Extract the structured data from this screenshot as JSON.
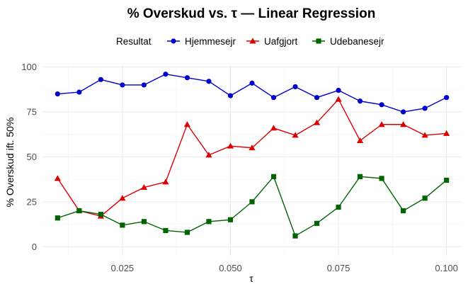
{
  "chart_data": {
    "type": "line",
    "title": "% Overskud vs. τ — Linear Regression",
    "xlabel": "τ",
    "ylabel": "% Overskud ift. 50%",
    "xlim": [
      0.0065,
      0.1035
    ],
    "ylim": [
      -5,
      101
    ],
    "xticks": [
      0.025,
      0.05,
      0.075,
      0.1
    ],
    "xtick_labels": [
      "0.025",
      "0.050",
      "0.075",
      "0.100"
    ],
    "yticks": [
      0,
      25,
      50,
      75,
      100
    ],
    "ytick_labels": [
      "0",
      "25",
      "50",
      "75",
      "100"
    ],
    "grid": true,
    "legend": {
      "title": "Resultat",
      "position": "top"
    },
    "x": [
      0.01,
      0.015,
      0.02,
      0.025,
      0.03,
      0.035,
      0.04,
      0.045,
      0.05,
      0.055,
      0.06,
      0.065,
      0.07,
      0.075,
      0.08,
      0.085,
      0.09,
      0.095,
      0.1
    ],
    "series": [
      {
        "name": "Hjemmesejr",
        "color": "#0000cc",
        "marker": "circle",
        "values": [
          85,
          86,
          93,
          90,
          90,
          96,
          94,
          92,
          84,
          91,
          83,
          89,
          83,
          87,
          81,
          79,
          75,
          77,
          83
        ]
      },
      {
        "name": "Uafgjort",
        "color": "#dd0000",
        "marker": "triangle",
        "values": [
          38,
          20,
          17,
          27,
          33,
          36,
          68,
          51,
          56,
          55,
          66,
          62,
          69,
          82,
          59,
          68,
          68,
          62,
          63
        ]
      },
      {
        "name": "Udebanesejr",
        "color": "#006400",
        "marker": "square",
        "values": [
          16,
          20,
          18,
          12,
          14,
          9,
          8,
          14,
          15,
          25,
          39,
          6,
          13,
          22,
          39,
          38,
          20,
          27,
          37
        ]
      }
    ]
  }
}
